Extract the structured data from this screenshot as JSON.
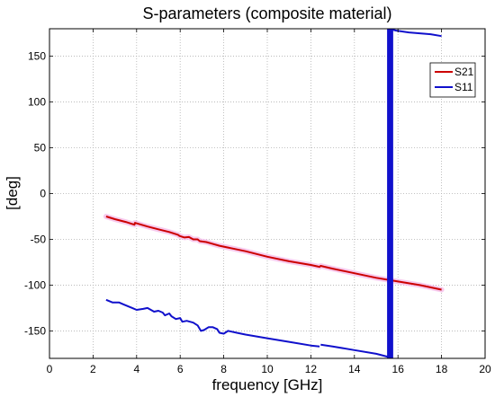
{
  "chart_data": {
    "type": "line",
    "title": "S-parameters (composite material)",
    "xlabel": "frequency [GHz]",
    "ylabel": "[deg]",
    "xlim": [
      0,
      20
    ],
    "ylim": [
      -180,
      180
    ],
    "x_ticks": [
      0,
      2,
      4,
      6,
      8,
      10,
      12,
      14,
      16,
      18,
      20
    ],
    "y_ticks": [
      -150,
      -100,
      -50,
      0,
      50,
      100,
      150
    ],
    "grid": true,
    "legend_position": "top-right",
    "series": [
      {
        "name": "S21",
        "color": "#cc0000",
        "shadow_color": "#f4b8e8",
        "segments": [
          [
            [
              2.6,
              -25
            ],
            [
              3.0,
              -28
            ],
            [
              3.5,
              -31
            ],
            [
              3.9,
              -34
            ],
            [
              3.92,
              -32
            ],
            [
              4.5,
              -36
            ],
            [
              5.0,
              -39
            ],
            [
              5.5,
              -42
            ],
            [
              5.9,
              -45
            ],
            [
              5.95,
              -46
            ],
            [
              6.0,
              -46.5
            ],
            [
              6.2,
              -48
            ],
            [
              6.4,
              -47.5
            ],
            [
              6.6,
              -50
            ],
            [
              6.8,
              -50
            ],
            [
              6.9,
              -52
            ],
            [
              7.2,
              -53
            ],
            [
              7.5,
              -55
            ],
            [
              7.8,
              -57
            ],
            [
              8.1,
              -58.5
            ],
            [
              8.2,
              -59
            ],
            [
              9.0,
              -63
            ],
            [
              10.0,
              -69
            ],
            [
              11.0,
              -74
            ],
            [
              12.0,
              -78
            ],
            [
              12.4,
              -80
            ],
            [
              12.45,
              -79
            ],
            [
              13.0,
              -82
            ],
            [
              14.0,
              -87
            ],
            [
              15.0,
              -92
            ],
            [
              16.0,
              -96
            ],
            [
              17.0,
              -100
            ],
            [
              18.0,
              -105
            ]
          ]
        ]
      },
      {
        "name": "S11",
        "color": "#1010cc",
        "segments": [
          [
            [
              2.6,
              -116
            ],
            [
              2.9,
              -119
            ],
            [
              3.2,
              -119
            ],
            [
              3.4,
              -121
            ],
            [
              3.6,
              -123
            ],
            [
              3.8,
              -125
            ],
            [
              4.0,
              -127
            ],
            [
              4.3,
              -126
            ],
            [
              4.5,
              -125
            ],
            [
              4.8,
              -129
            ],
            [
              5.0,
              -128
            ],
            [
              5.2,
              -130
            ],
            [
              5.3,
              -133
            ],
            [
              5.5,
              -131
            ],
            [
              5.6,
              -134
            ],
            [
              5.8,
              -137
            ],
            [
              6.0,
              -136
            ],
            [
              6.1,
              -140
            ],
            [
              6.3,
              -139
            ],
            [
              6.6,
              -141
            ],
            [
              6.8,
              -144
            ],
            [
              6.95,
              -150
            ],
            [
              7.1,
              -149
            ],
            [
              7.3,
              -146
            ],
            [
              7.5,
              -146
            ],
            [
              7.7,
              -148
            ],
            [
              7.8,
              -152
            ],
            [
              8.0,
              -153
            ],
            [
              8.2,
              -150
            ],
            [
              8.6,
              -152
            ],
            [
              9.0,
              -154
            ],
            [
              10.0,
              -158
            ],
            [
              11.0,
              -162
            ],
            [
              12.0,
              -166
            ],
            [
              12.4,
              -167
            ]
          ],
          [
            [
              12.45,
              -165
            ],
            [
              13.0,
              -167
            ],
            [
              14.0,
              -171
            ],
            [
              15.0,
              -175
            ],
            [
              15.5,
              -178
            ],
            [
              15.6,
              -180
            ]
          ],
          [
            [
              15.6,
              180
            ],
            [
              15.9,
              178
            ],
            [
              16.5,
              176
            ],
            [
              17.0,
              175
            ],
            [
              17.5,
              174
            ],
            [
              18.0,
              172
            ]
          ]
        ],
        "vertical_band": {
          "x_start": 15.5,
          "x_end": 15.78
        }
      }
    ]
  }
}
